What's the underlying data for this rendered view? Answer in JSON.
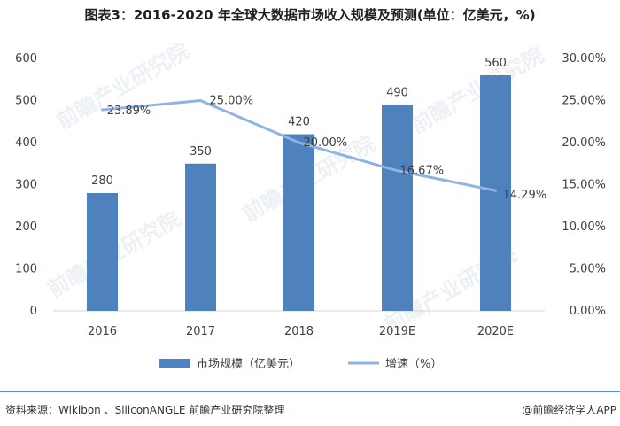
{
  "header": {
    "title": "图表3：2016-2020 年全球大数据市场收入规模及预测(单位：亿美元，%)"
  },
  "footer": {
    "source": "资料来源：Wikibon 、SiliconANGLE 前瞻产业研究院整理",
    "brand": "@前瞻经济学人APP"
  },
  "watermark": "前瞻产业研究院",
  "colors": {
    "bar": "#4f81bd",
    "line": "#8eb4e3",
    "axis": "#d9d9d9"
  },
  "chart_data": {
    "type": "bar",
    "categories": [
      "2016",
      "2017",
      "2018",
      "2019E",
      "2020E"
    ],
    "series": [
      {
        "name": "市场规模（亿美元）",
        "type": "bar",
        "axis": "left",
        "values": [
          280,
          350,
          420,
          490,
          560
        ],
        "labels": [
          "280",
          "350",
          "420",
          "490",
          "560"
        ]
      },
      {
        "name": "增速（%）",
        "type": "line",
        "axis": "right",
        "values": [
          23.89,
          25.0,
          20.0,
          16.67,
          14.29
        ],
        "labels": [
          "23.89%",
          "25.00%",
          "20.00%",
          "16.67%",
          "14.29%"
        ]
      }
    ],
    "y_left": {
      "min": 0,
      "max": 600,
      "ticks": [
        "0",
        "100",
        "200",
        "300",
        "400",
        "500",
        "600"
      ]
    },
    "y_right": {
      "min": 0,
      "max": 30,
      "ticks": [
        "0.00%",
        "5.00%",
        "10.00%",
        "15.00%",
        "20.00%",
        "25.00%",
        "30.00%"
      ]
    },
    "grid": false,
    "legend_position": "bottom"
  }
}
